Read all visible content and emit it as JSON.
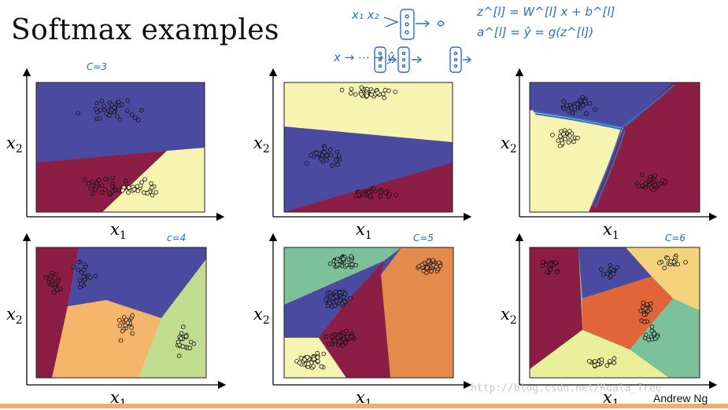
{
  "title": "Softmax examples",
  "annotations": {
    "c3": "C=3",
    "c4": "c=4",
    "c5": "C=5",
    "c6": "C=6",
    "note_inputs": "x₁  x₂",
    "note_eq1": "z^[l] = W^[l] x + b^[l]",
    "note_eq2": "a^[l] = ŷ = g(z^[l])",
    "note_chain": "x → ⋯ → ŷ"
  },
  "axis": {
    "x": "x",
    "x_sub": "1",
    "y": "x",
    "y_sub": "2"
  },
  "watermark": "http://blog.csdn.net/Koala_Tree",
  "author": "Andrew Ng",
  "colors": {
    "dark_blue": "#4a4aa0",
    "dark_red": "#8c1d45",
    "pale_yellow": "#f7f3b0",
    "green": "#7cc19a",
    "orange": "#e58a4d",
    "light_orange": "#f5b66b",
    "light_green": "#bfdc8f",
    "red_orange": "#e0663a",
    "annotation_blue": "#2a6fc4"
  },
  "panels": [
    {
      "id": "panel-1",
      "classes": 3
    },
    {
      "id": "panel-2",
      "classes": 3
    },
    {
      "id": "panel-3",
      "classes": 3
    },
    {
      "id": "panel-4",
      "classes": 4
    },
    {
      "id": "panel-5",
      "classes": 5
    },
    {
      "id": "panel-6",
      "classes": 6
    }
  ]
}
